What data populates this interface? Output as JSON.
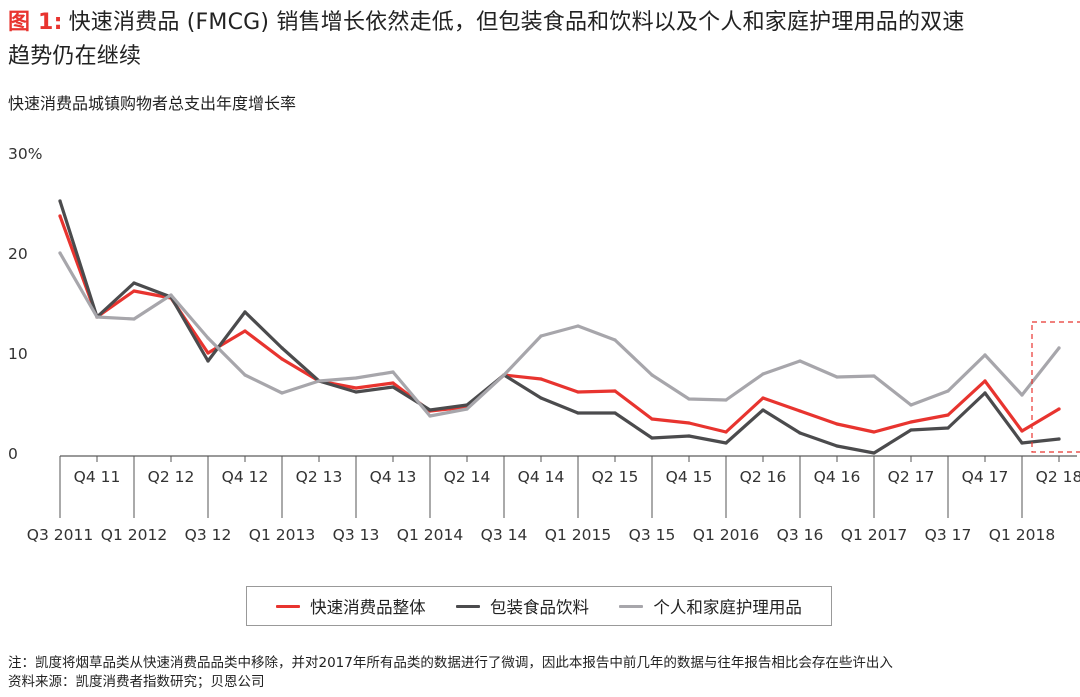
{
  "title": {
    "label": "图 1:",
    "line1": "快速消费品 (FMCG) 销售增长依然走低，但包装食品和饮料以及个人和家庭护理用品的双速",
    "line2": "趋势仍在继续"
  },
  "subtitle": "快速消费品城镇购物者总支出年度增长率",
  "footnotes": [
    "注：凯度将烟草品类从快速消费品品类中移除，并对2017年所有品类的数据进行了微调，因此本报告中前几年的数据与往年报告相比会存在些许出入",
    "资料来源：凯度消费者指数研究；贝恩公司"
  ],
  "chart_data": {
    "type": "line",
    "y_ticks": [
      {
        "value": 30,
        "label": "30%"
      },
      {
        "value": 20,
        "label": "20"
      },
      {
        "value": 10,
        "label": "10"
      },
      {
        "value": 0,
        "label": "0"
      }
    ],
    "ylim": [
      0,
      30
    ],
    "x": [
      "Q3 2011",
      "Q4 11",
      "Q1 2012",
      "Q2 12",
      "Q3 12",
      "Q4 12",
      "Q1 2013",
      "Q2 13",
      "Q3 13",
      "Q4 13",
      "Q1 2014",
      "Q2 14",
      "Q3 14",
      "Q4 14",
      "Q1 2015",
      "Q2 15",
      "Q3 15",
      "Q4 15",
      "Q1 2016",
      "Q2 16",
      "Q3 16",
      "Q4 16",
      "Q1 2017",
      "Q2 17",
      "Q3 17",
      "Q4 17",
      "Q1 2018",
      "Q2 18"
    ],
    "series": [
      {
        "name": "快速消费品整体",
        "color": "#e8342f",
        "values": [
          23.7,
          13.6,
          16.2,
          15.5,
          10.0,
          12.2,
          9.4,
          7.2,
          6.5,
          7.0,
          4.2,
          4.6,
          7.8,
          7.4,
          6.1,
          6.2,
          3.4,
          3.0,
          2.1,
          5.5,
          4.2,
          2.9,
          2.1,
          3.1,
          3.8,
          7.2,
          2.2,
          4.4
        ]
      },
      {
        "name": "包装食品饮料",
        "color": "#4b4b4d",
        "values": [
          25.2,
          13.6,
          17.0,
          15.6,
          9.2,
          14.1,
          10.5,
          7.2,
          6.1,
          6.6,
          4.3,
          4.8,
          7.8,
          5.5,
          4.0,
          4.0,
          1.5,
          1.7,
          1.0,
          4.3,
          2.0,
          0.7,
          0.0,
          2.3,
          2.5,
          6.0,
          1.0,
          1.4
        ]
      },
      {
        "name": "个人和家庭护理用品",
        "color": "#a7a6ab",
        "values": [
          20.0,
          13.6,
          13.4,
          15.8,
          11.5,
          7.8,
          6.0,
          7.2,
          7.5,
          8.1,
          3.7,
          4.4,
          7.8,
          11.7,
          12.7,
          11.3,
          7.8,
          5.4,
          5.3,
          7.9,
          9.2,
          7.6,
          7.7,
          4.8,
          6.2,
          9.8,
          5.8,
          10.5
        ]
      }
    ],
    "highlight": {
      "x": "Q2 18"
    }
  }
}
